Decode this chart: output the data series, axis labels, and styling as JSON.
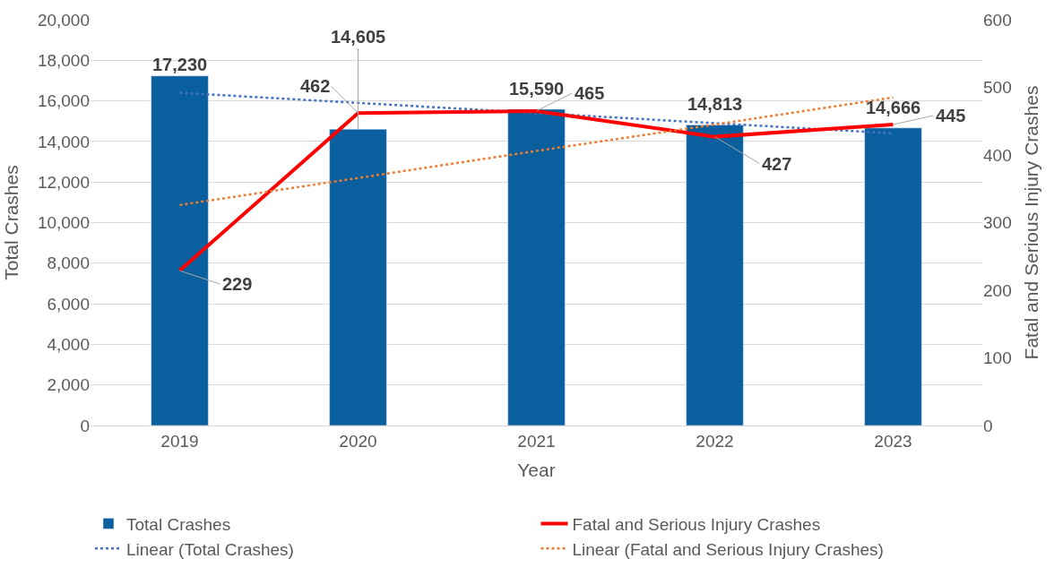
{
  "chart_data": {
    "type": "bar",
    "xlabel": "Year",
    "ylabel": "Total Crashes",
    "y2label": "Fatal and Serious Injury Crashes",
    "categories": [
      "2019",
      "2020",
      "2021",
      "2022",
      "2023"
    ],
    "series": [
      {
        "name": "Total Crashes",
        "color": "#0a5f9e",
        "values": [
          17230,
          14605,
          15590,
          14813,
          14666
        ],
        "value_labels": [
          "17,230",
          "14,605",
          "15,590",
          "14,813",
          "14,666"
        ]
      },
      {
        "name": "Fatal and Serious Injury Crashes",
        "type": "line",
        "axis": "y2",
        "color": "#ff0000",
        "values": [
          229,
          462,
          465,
          427,
          445
        ],
        "data_labels": true,
        "line_style": "solid"
      },
      {
        "name": "Linear (Total Crashes)",
        "type": "line",
        "color": "#4472c4",
        "values": [
          16400,
          15900,
          15400,
          14900,
          14400
        ],
        "line_style": "dotted"
      },
      {
        "name": "Linear (Fatal and Serious Injury Crashes)",
        "type": "line",
        "axis": "y2",
        "color": "#ed7d31",
        "values": [
          326,
          366,
          406,
          445,
          485
        ],
        "line_style": "dotted"
      }
    ],
    "ylim": [
      0,
      20000
    ],
    "yticks": [
      0,
      {
        "value": 2000,
        "label": "2,000"
      },
      {
        "value": 4000,
        "label": "4,000"
      },
      {
        "value": 6000,
        "label": "6,000"
      },
      {
        "value": 8000,
        "label": "8,000"
      },
      {
        "value": 10000,
        "label": "10,000"
      },
      {
        "value": 12000,
        "label": "12,000"
      },
      {
        "value": 14000,
        "label": "14,000"
      },
      {
        "value": 16000,
        "label": "16,000"
      },
      {
        "value": 18000,
        "label": "18,000"
      },
      {
        "value": 20000,
        "label": "20,000"
      }
    ],
    "y2lim": [
      0,
      600
    ],
    "y2ticks": [
      0,
      100,
      200,
      300,
      400,
      500,
      600
    ],
    "grid": "y",
    "legend": "bottom",
    "marker": "none"
  }
}
